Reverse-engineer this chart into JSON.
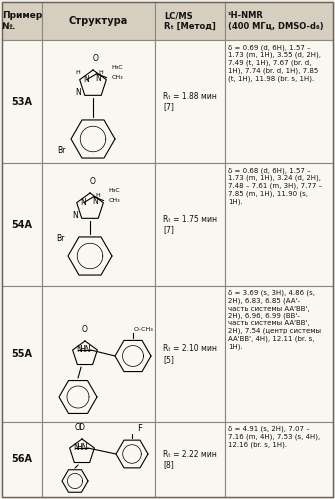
{
  "title_col1": "Пример\n№.",
  "title_col2": "Структура",
  "title_col3": "LC/MS\nRₜ [Метод]",
  "title_col4": "¹H-NMR\n(400 МГц, DMSO-d₆)",
  "rows": [
    {
      "example": "53A",
      "lcms": "Rₜ = 1.88 мин\n[7]",
      "nmr": "δ = 0.69 (d, 6H), 1.57 –\n1.73 (m, 1H), 3.55 (d, 2H),\n7.49 (t, 1H), 7.67 (br. d,\n1H), 7.74 (br. d, 1H), 7.85\n(t, 1H), 11.98 (br. s, 1H)."
    },
    {
      "example": "54A",
      "lcms": "Rₜ = 1.75 мин\n[7]",
      "nmr": "δ = 0.68 (d, 6H), 1.57 –\n1.73 (m, 1H), 3.24 (d, 2H),\n7.48 – 7.61 (m, 3H), 7.77 –\n7.85 (m, 1H), 11.90 (s,\n1H)."
    },
    {
      "example": "55A",
      "lcms": "Rₜ = 2.10 мин\n[5]",
      "nmr": "δ = 3.69 (s, 3H), 4.86 (s,\n2H), 6.83, 6.85 (AA'-\nчасть системы AA'BB',\n2H), 6.96, 6.99 (BB'-\nчасть системы AA'BB',\n2H), 7.54 (центр системы\nAA'BB', 4H), 12.11 (br. s,\n1H)."
    },
    {
      "example": "56A",
      "lcms": "Rₜ = 2.22 мин\n[8]",
      "nmr": "δ = 4.91 (s, 2H), 7.07 –\n7.16 (m, 4H), 7.53 (s, 4H),\n12.16 (br. s, 1H)."
    }
  ],
  "bg_color": "#f2ede3",
  "header_bg": "#d6cfc0",
  "cell_bg": "#faf7f0",
  "line_color": "#888880",
  "text_color": "#111111",
  "figsize": [
    3.35,
    4.99
  ],
  "dpi": 100
}
